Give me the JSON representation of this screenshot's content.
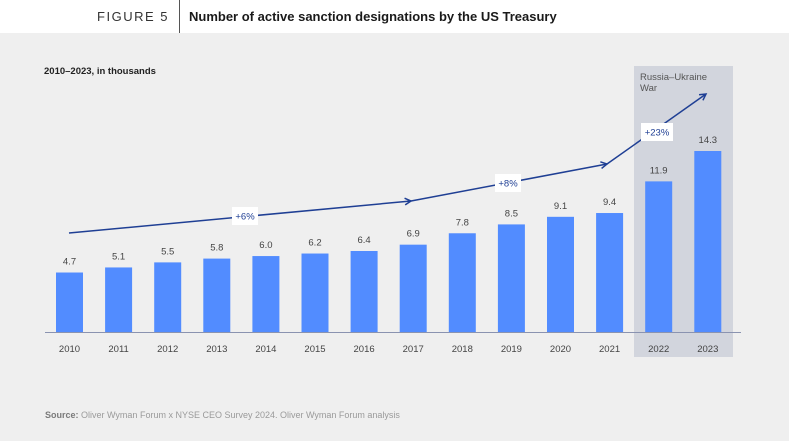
{
  "header": {
    "figure_label": "FIGURE 5",
    "title": "Number of active sanction designations by the US Treasury"
  },
  "subtitle": "2010–2023, in thousands",
  "source": {
    "label": "Source:",
    "text": " Oliver Wyman Forum x NYSE CEO Survey 2024. Oliver Wyman Forum analysis"
  },
  "chart_data": {
    "type": "bar",
    "title": "Number of active sanction designations by the US Treasury",
    "subtitle": "2010–2023, in thousands",
    "xlabel": "",
    "ylabel": "",
    "categories": [
      "2010",
      "2011",
      "2012",
      "2013",
      "2014",
      "2015",
      "2016",
      "2017",
      "2018",
      "2019",
      "2020",
      "2021",
      "2022",
      "2023"
    ],
    "values": [
      4.7,
      5.1,
      5.5,
      5.8,
      6.0,
      6.2,
      6.4,
      6.9,
      7.8,
      8.5,
      9.1,
      9.4,
      11.9,
      14.3
    ],
    "value_labels": [
      "4.7",
      "5.1",
      "5.5",
      "5.8",
      "6.0",
      "6.2",
      "6.4",
      "6.9",
      "7.8",
      "8.5",
      "9.1",
      "9.4",
      "11.9",
      "14.3"
    ],
    "ylim": [
      0,
      14.3
    ],
    "grid": false,
    "bar_color": "#528cff",
    "highlight": {
      "label": "Russia–Ukraine War",
      "categories": [
        "2022",
        "2023"
      ],
      "color": "#d2d5dd"
    },
    "trend_annotations": [
      {
        "label": "+6%",
        "from": "2010",
        "to": "2017"
      },
      {
        "label": "+8%",
        "from": "2017",
        "to": "2021"
      },
      {
        "label": "+23%",
        "from": "2021",
        "to": "2023"
      }
    ],
    "trend_color": "#1f3f94"
  }
}
